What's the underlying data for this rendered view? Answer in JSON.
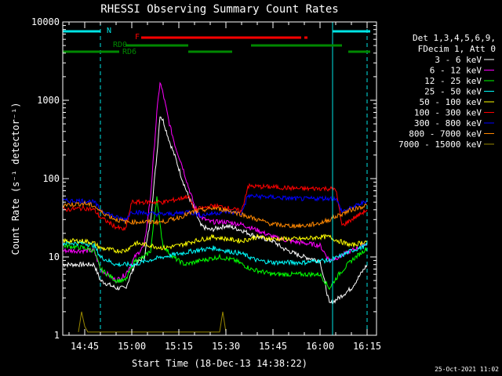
{
  "chart_data": {
    "type": "line",
    "title": "RHESSI Observing Summary Count Rates",
    "xlabel": "Start Time (18-Dec-13 14:38:22)",
    "ylabel": "Count Rate (s⁻¹ detector⁻¹)",
    "y_scale": "log",
    "ylim": [
      1,
      10000
    ],
    "xlim": [
      "14:38",
      "16:18"
    ],
    "grid": false,
    "legend_position": "right",
    "x_ticks": [
      "14:45",
      "15:00",
      "15:15",
      "15:30",
      "15:45",
      "16:00",
      "16:15"
    ],
    "y_ticks": [
      "1",
      "10",
      "100",
      "1000",
      "10000"
    ],
    "legend_header": [
      "Det 1,3,4,5,6,9,",
      "FDecim 1, Att 0"
    ],
    "timestamp": "25-Oct-2021 11:02",
    "flags": [
      {
        "label": "N",
        "color": "#00e5e5",
        "segments": [
          [
            "14:38",
            "14:50"
          ],
          [
            "16:04",
            "16:16"
          ]
        ]
      },
      {
        "label": "F",
        "color": "#ff0000",
        "segments": [
          [
            "15:03",
            "15:54"
          ],
          [
            "15:55",
            "15:56"
          ]
        ]
      },
      {
        "label": "RD0",
        "color": "#008800",
        "segments": [
          [
            "14:58",
            "15:18"
          ],
          [
            "15:38",
            "16:07"
          ]
        ]
      },
      {
        "label": "RD6",
        "color": "#008800",
        "segments": [
          [
            "14:38",
            "14:56"
          ],
          [
            "15:18",
            "15:32"
          ],
          [
            "16:09",
            "16:16"
          ]
        ]
      }
    ],
    "markers": [
      {
        "color": "#00e5e5",
        "style": "dashed",
        "x": "14:50"
      },
      {
        "color": "#00e5e5",
        "style": "dashed",
        "x": "16:15"
      },
      {
        "color": "#00e5e5",
        "style": "solid",
        "x": "14:38"
      },
      {
        "color": "#00e5e5",
        "style": "solid",
        "x": "16:04"
      }
    ],
    "series": [
      {
        "name": "3 - 6 keV",
        "color": "#ffffff",
        "points": [
          [
            "14:38",
            8
          ],
          [
            "14:45",
            8
          ],
          [
            "14:48",
            8
          ],
          [
            "14:50",
            5
          ],
          [
            "14:55",
            4
          ],
          [
            "14:58",
            4
          ],
          [
            "15:01",
            8
          ],
          [
            "15:04",
            10
          ],
          [
            "15:06",
            30
          ],
          [
            "15:08",
            200
          ],
          [
            "15:09",
            650
          ],
          [
            "15:10",
            550
          ],
          [
            "15:12",
            300
          ],
          [
            "15:14",
            180
          ],
          [
            "15:16",
            100
          ],
          [
            "15:18",
            60
          ],
          [
            "15:20",
            40
          ],
          [
            "15:22",
            25
          ],
          [
            "15:25",
            22
          ],
          [
            "15:30",
            25
          ],
          [
            "15:35",
            22
          ],
          [
            "15:40",
            18
          ],
          [
            "15:45",
            16
          ],
          [
            "15:48",
            13
          ],
          [
            "15:52",
            11
          ],
          [
            "15:55",
            10
          ],
          [
            "16:00",
            9
          ],
          [
            "16:03",
            2.5
          ],
          [
            "16:06",
            3
          ],
          [
            "16:10",
            4
          ],
          [
            "16:15",
            8
          ]
        ]
      },
      {
        "name": "6 - 12 keV",
        "color": "#ff00ff",
        "points": [
          [
            "14:38",
            12
          ],
          [
            "14:45",
            12
          ],
          [
            "14:48",
            12
          ],
          [
            "14:50",
            7
          ],
          [
            "14:55",
            5
          ],
          [
            "14:58",
            6
          ],
          [
            "15:01",
            10
          ],
          [
            "15:04",
            14
          ],
          [
            "15:06",
            60
          ],
          [
            "15:08",
            700
          ],
          [
            "15:09",
            1700
          ],
          [
            "15:10",
            1200
          ],
          [
            "15:12",
            500
          ],
          [
            "15:14",
            250
          ],
          [
            "15:16",
            150
          ],
          [
            "15:18",
            80
          ],
          [
            "15:20",
            45
          ],
          [
            "15:22",
            32
          ],
          [
            "15:25",
            28
          ],
          [
            "15:30",
            28
          ],
          [
            "15:35",
            26
          ],
          [
            "15:40",
            22
          ],
          [
            "15:45",
            18
          ],
          [
            "15:50",
            16
          ],
          [
            "15:55",
            15
          ],
          [
            "16:00",
            14
          ],
          [
            "16:03",
            9
          ],
          [
            "16:06",
            10
          ],
          [
            "16:10",
            12
          ],
          [
            "16:15",
            15
          ]
        ]
      },
      {
        "name": "12 - 25 keV",
        "color": "#00ff00",
        "points": [
          [
            "14:38",
            14
          ],
          [
            "14:45",
            13
          ],
          [
            "14:48",
            12
          ],
          [
            "14:50",
            7
          ],
          [
            "14:55",
            5
          ],
          [
            "14:58",
            5
          ],
          [
            "15:01",
            9
          ],
          [
            "15:04",
            10
          ],
          [
            "15:06",
            12
          ],
          [
            "15:08",
            60
          ],
          [
            "15:09",
            25
          ],
          [
            "15:10",
            14
          ],
          [
            "15:13",
            10
          ],
          [
            "15:17",
            8
          ],
          [
            "15:22",
            9
          ],
          [
            "15:28",
            10
          ],
          [
            "15:33",
            9
          ],
          [
            "15:38",
            7
          ],
          [
            "15:45",
            6
          ],
          [
            "15:50",
            6
          ],
          [
            "15:55",
            6
          ],
          [
            "16:00",
            6
          ],
          [
            "16:03",
            4
          ],
          [
            "16:06",
            6
          ],
          [
            "16:10",
            9
          ],
          [
            "16:15",
            13
          ]
        ]
      },
      {
        "name": "25 - 50 keV",
        "color": "#00ffff",
        "points": [
          [
            "14:38",
            15
          ],
          [
            "14:45",
            15
          ],
          [
            "14:48",
            14
          ],
          [
            "14:50",
            10
          ],
          [
            "14:55",
            8
          ],
          [
            "14:58",
            8
          ],
          [
            "15:01",
            8
          ],
          [
            "15:05",
            9
          ],
          [
            "15:10",
            10
          ],
          [
            "15:15",
            11
          ],
          [
            "15:20",
            12
          ],
          [
            "15:26",
            13
          ],
          [
            "15:30",
            12
          ],
          [
            "15:35",
            11
          ],
          [
            "15:40",
            9
          ],
          [
            "15:45",
            8.5
          ],
          [
            "15:50",
            8.5
          ],
          [
            "15:55",
            8.5
          ],
          [
            "16:00",
            9
          ],
          [
            "16:03",
            9
          ],
          [
            "16:06",
            10
          ],
          [
            "16:10",
            12
          ],
          [
            "16:15",
            14
          ]
        ]
      },
      {
        "name": "50 - 100 keV",
        "color": "#ffff00",
        "points": [
          [
            "14:38",
            16
          ],
          [
            "14:45",
            16
          ],
          [
            "14:48",
            15
          ],
          [
            "14:50",
            13
          ],
          [
            "14:55",
            12
          ],
          [
            "14:58",
            12
          ],
          [
            "15:01",
            15
          ],
          [
            "15:06",
            14
          ],
          [
            "15:10",
            13
          ],
          [
            "15:15",
            14
          ],
          [
            "15:20",
            16
          ],
          [
            "15:26",
            18
          ],
          [
            "15:30",
            17
          ],
          [
            "15:35",
            16
          ],
          [
            "15:40",
            18
          ],
          [
            "15:45",
            17
          ],
          [
            "15:50",
            17
          ],
          [
            "15:55",
            17
          ],
          [
            "16:00",
            18
          ],
          [
            "16:03",
            18
          ],
          [
            "16:06",
            16
          ],
          [
            "16:10",
            14
          ],
          [
            "16:15",
            16
          ]
        ]
      },
      {
        "name": "100 - 300 keV",
        "color": "#ff0000",
        "points": [
          [
            "14:38",
            40
          ],
          [
            "14:45",
            42
          ],
          [
            "14:48",
            40
          ],
          [
            "14:50",
            32
          ],
          [
            "14:55",
            24
          ],
          [
            "14:58",
            22
          ],
          [
            "15:00",
            50
          ],
          [
            "15:05",
            50
          ],
          [
            "15:10",
            50
          ],
          [
            "15:15",
            55
          ],
          [
            "15:18",
            60
          ],
          [
            "15:20",
            40
          ],
          [
            "15:26",
            45
          ],
          [
            "15:30",
            43
          ],
          [
            "15:35",
            38
          ],
          [
            "15:37",
            80
          ],
          [
            "15:45",
            78
          ],
          [
            "15:50",
            76
          ],
          [
            "15:55",
            74
          ],
          [
            "16:00",
            75
          ],
          [
            "16:05",
            74
          ],
          [
            "16:07",
            25
          ],
          [
            "16:10",
            30
          ],
          [
            "16:15",
            40
          ]
        ]
      },
      {
        "name": "300 - 800 keV",
        "color": "#0000ff",
        "points": [
          [
            "14:38",
            52
          ],
          [
            "14:45",
            52
          ],
          [
            "14:48",
            50
          ],
          [
            "14:50",
            40
          ],
          [
            "14:55",
            32
          ],
          [
            "14:58",
            30
          ],
          [
            "15:00",
            38
          ],
          [
            "15:05",
            36
          ],
          [
            "15:10",
            35
          ],
          [
            "15:15",
            36
          ],
          [
            "15:18",
            38
          ],
          [
            "15:22",
            34
          ],
          [
            "15:26",
            36
          ],
          [
            "15:30",
            38
          ],
          [
            "15:35",
            36
          ],
          [
            "15:37",
            60
          ],
          [
            "15:45",
            58
          ],
          [
            "15:50",
            56
          ],
          [
            "15:55",
            55
          ],
          [
            "16:00",
            56
          ],
          [
            "16:05",
            56
          ],
          [
            "16:07",
            38
          ],
          [
            "16:10",
            42
          ],
          [
            "16:15",
            52
          ]
        ]
      },
      {
        "name": "800 - 7000 keV",
        "color": "#ff8800",
        "points": [
          [
            "14:38",
            46
          ],
          [
            "14:45",
            48
          ],
          [
            "14:48",
            45
          ],
          [
            "14:50",
            38
          ],
          [
            "14:55",
            30
          ],
          [
            "14:58",
            28
          ],
          [
            "15:00",
            28
          ],
          [
            "15:05",
            28
          ],
          [
            "15:10",
            28
          ],
          [
            "15:15",
            32
          ],
          [
            "15:20",
            38
          ],
          [
            "15:26",
            42
          ],
          [
            "15:30",
            40
          ],
          [
            "15:35",
            35
          ],
          [
            "15:40",
            30
          ],
          [
            "15:45",
            26
          ],
          [
            "15:50",
            25
          ],
          [
            "15:55",
            25
          ],
          [
            "16:00",
            27
          ],
          [
            "16:03",
            30
          ],
          [
            "16:06",
            34
          ],
          [
            "16:10",
            40
          ],
          [
            "16:15",
            46
          ]
        ]
      },
      {
        "name": "7000 - 15000 keV",
        "color": "#998800",
        "points": [
          [
            "14:43",
            1.1
          ],
          [
            "14:44",
            2
          ],
          [
            "14:45",
            1.3
          ],
          [
            "14:46",
            1.1
          ],
          [
            "15:28",
            1.1
          ],
          [
            "15:29",
            2
          ],
          [
            "15:30",
            1.1
          ]
        ]
      }
    ]
  }
}
